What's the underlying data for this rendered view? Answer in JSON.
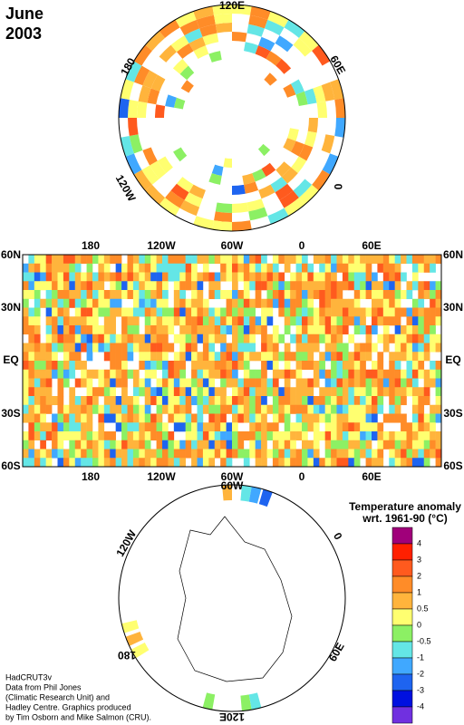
{
  "title": [
    "June",
    "2003"
  ],
  "north_map": {
    "labels": [
      "120E",
      "60E",
      "0",
      "120W",
      "180"
    ]
  },
  "world_map": {
    "top_labels": [
      "180",
      "120W",
      "60W",
      "0",
      "60E"
    ],
    "lat_labels": [
      "60N",
      "30N",
      "EQ",
      "30S",
      "60S"
    ],
    "bottom_labels": [
      "180",
      "120W",
      "60W",
      "0",
      "60E"
    ]
  },
  "south_map": {
    "labels": [
      "60W",
      "0",
      "60E",
      "120E",
      "180",
      "120W"
    ]
  },
  "legend": {
    "title": [
      "Temperature anomaly",
      "wrt. 1961-90  (°C)"
    ],
    "labels": [
      4,
      3,
      2,
      1,
      0.5,
      0,
      -0.5,
      -1,
      -2,
      -3,
      -4
    ],
    "colors": [
      "#a0007a",
      "#ff2000",
      "#ff5a1e",
      "#ff8c28",
      "#ffb43c",
      "#ffff70",
      "#8cf064",
      "#64e6e6",
      "#40a8ff",
      "#1e64f0",
      "#0010e0",
      "#7030e0"
    ]
  },
  "credits": [
    "HadCRUT3v",
    "Data from Phil Jones",
    "(Climatic Research Unit) and",
    "Hadley Centre.  Graphics produced",
    "by Tim Osborn and Mike Salmon (CRU)."
  ]
}
